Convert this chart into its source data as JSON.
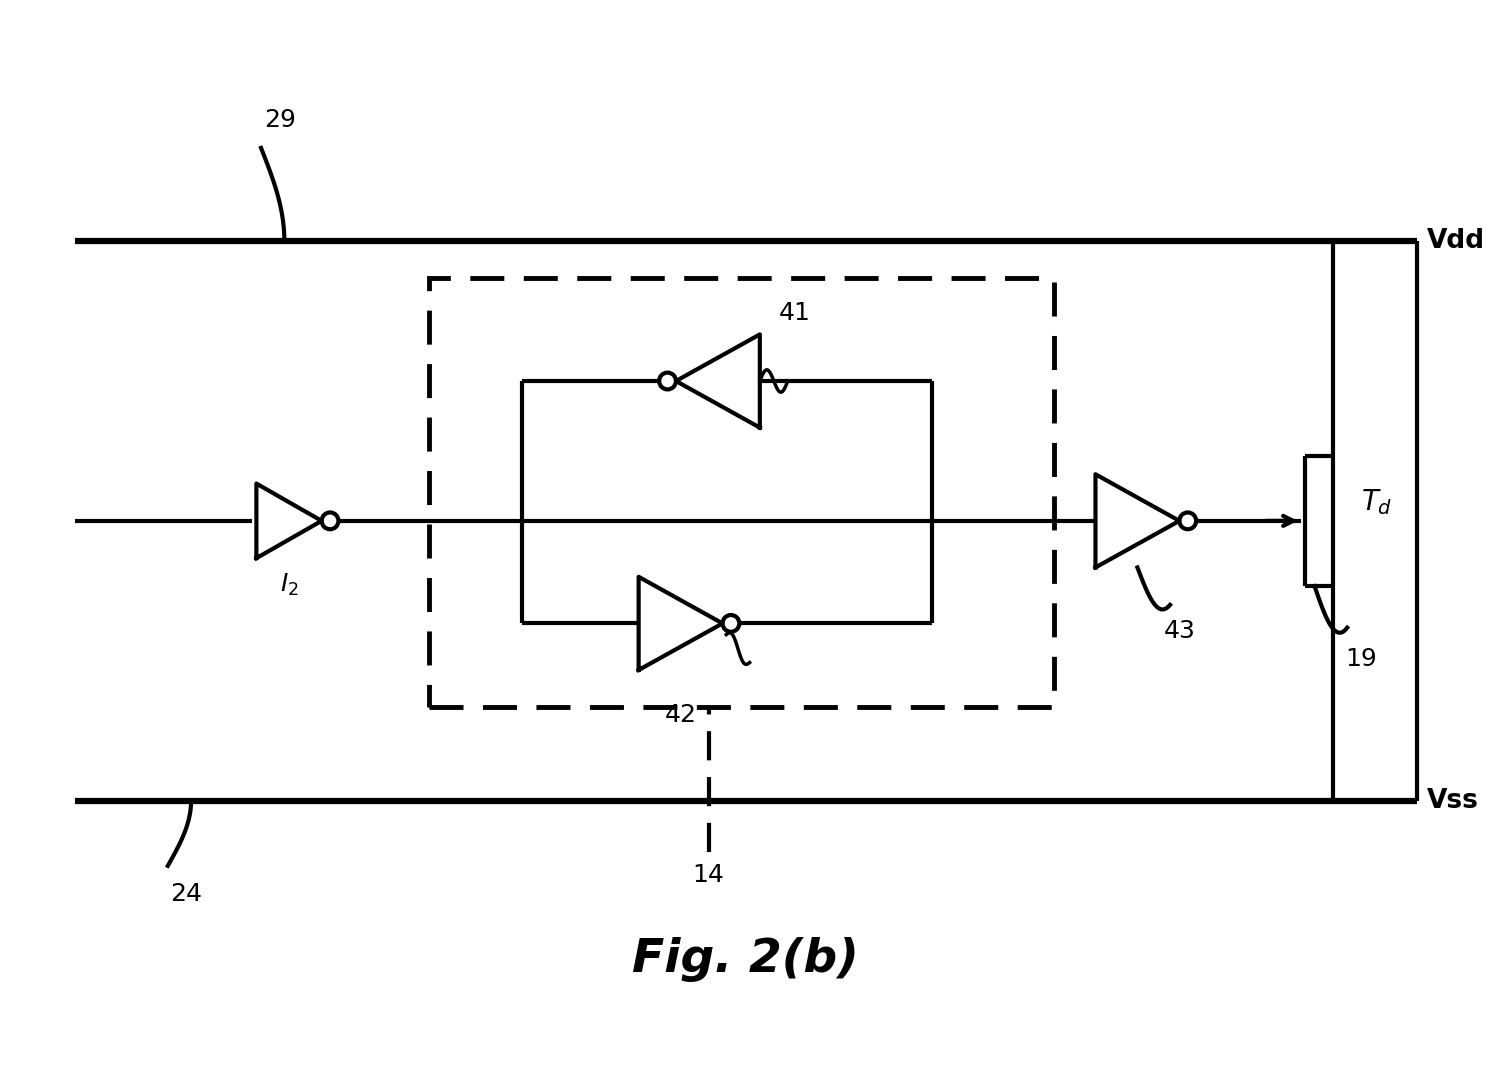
{
  "title": "Fig. 2(b)",
  "bg_color": "#ffffff",
  "line_color": "#000000",
  "lw": 3.0,
  "fig_width": 14.99,
  "fig_height": 10.79,
  "vdd_label": "Vdd",
  "vss_label": "Vss",
  "label_29": "29",
  "label_24": "24",
  "label_14": "14",
  "label_41": "41",
  "label_42": "42",
  "label_43": "43",
  "label_19": "19",
  "label_I2": "$I_2$",
  "label_Td": "$T_d$",
  "vdd_y": 82,
  "vss_y": 22,
  "sig_y": 52,
  "xlim": [
    0,
    160
  ],
  "ylim": [
    0,
    100
  ]
}
